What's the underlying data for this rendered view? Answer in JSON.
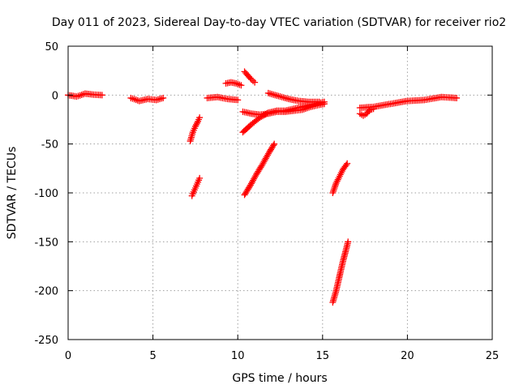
{
  "chart_data": {
    "type": "scatter",
    "title": "Day 011 of 2023, Sidereal Day-to-day VTEC variation (SDTVAR) for receiver rio2",
    "xlabel": "GPS time / hours",
    "ylabel": "SDTVAR / TECUs",
    "xlim": [
      0,
      25
    ],
    "ylim": [
      -250,
      50
    ],
    "xticks": [
      "0",
      "5",
      "10",
      "15",
      "20",
      "25"
    ],
    "yticks": [
      "50",
      "0",
      "-50",
      "-100",
      "-150",
      "-200",
      "-250"
    ],
    "grid": true,
    "marker": "plus",
    "colors": {
      "points": "#ff0000",
      "frame": "#000000",
      "grid": "#a0a0a0"
    },
    "series": [
      {
        "segments": [
          {
            "x": [
              0.0,
              0.5,
              1.0,
              1.5,
              2.0
            ],
            "y": [
              0.0,
              -1.5,
              1.5,
              0.5,
              0.0
            ]
          },
          {
            "x": [
              3.7,
              4.2,
              4.7,
              5.2,
              5.6
            ],
            "y": [
              -3.0,
              -6.0,
              -4.0,
              -5.0,
              -3.0
            ]
          },
          {
            "x": [
              7.2,
              7.35,
              7.5,
              7.65,
              7.75
            ],
            "y": [
              -47.0,
              -38.0,
              -32.0,
              -27.0,
              -23.0
            ]
          },
          {
            "x": [
              7.3,
              7.45,
              7.6,
              7.75
            ],
            "y": [
              -103.0,
              -97.0,
              -91.0,
              -85.0
            ]
          },
          {
            "x": [
              8.2,
              8.8,
              9.4,
              10.0
            ],
            "y": [
              -3.0,
              -2.0,
              -4.0,
              -5.0
            ]
          },
          {
            "x": [
              9.3,
              9.6,
              9.9,
              10.2
            ],
            "y": [
              12.0,
              13.0,
              12.0,
              10.0
            ]
          },
          {
            "x": [
              10.4,
              10.6,
              10.8,
              11.0
            ],
            "y": [
              24.0,
              20.0,
              16.0,
              13.0
            ]
          },
          {
            "x": [
              10.3,
              10.8,
              11.3,
              11.8,
              12.3,
              12.8,
              13.3,
              13.8,
              14.3,
              14.8,
              15.1
            ],
            "y": [
              -17.0,
              -19.0,
              -20.0,
              -19.0,
              -17.0,
              -17.0,
              -16.0,
              -15.0,
              -12.0,
              -10.0,
              -9.0
            ]
          },
          {
            "x": [
              10.3,
              10.8,
              11.3,
              11.8,
              12.3,
              12.8,
              13.3,
              13.8,
              14.3,
              14.8,
              15.1
            ],
            "y": [
              -38.0,
              -30.0,
              -23.0,
              -18.0,
              -16.0,
              -16.0,
              -14.0,
              -12.0,
              -10.0,
              -8.0,
              -7.0
            ]
          },
          {
            "x": [
              11.8,
              12.4,
              13.0,
              13.6,
              14.2,
              14.8
            ],
            "y": [
              2.0,
              -1.0,
              -4.0,
              -6.0,
              -7.0,
              -7.0
            ]
          },
          {
            "x": [
              10.4,
              10.75,
              11.1,
              11.45,
              11.8,
              12.15
            ],
            "y": [
              -102.0,
              -92.0,
              -81.0,
              -71.0,
              -60.0,
              -50.0
            ]
          },
          {
            "x": [
              15.6,
              15.8,
              16.0,
              16.2,
              16.45
            ],
            "y": [
              -100.0,
              -90.0,
              -83.0,
              -76.0,
              -70.0
            ]
          },
          {
            "x": [
              15.6,
              15.8,
              16.0,
              16.2,
              16.4,
              16.5
            ],
            "y": [
              -212.0,
              -200.0,
              -185.0,
              -170.0,
              -157.0,
              -150.0
            ]
          },
          {
            "x": [
              17.2,
              17.4,
              17.6,
              17.8,
              18.0
            ],
            "y": [
              -19.0,
              -21.0,
              -19.0,
              -15.0,
              -14.0
            ]
          },
          {
            "x": [
              17.2,
              18.0,
              19.0,
              20.0,
              21.0,
              22.0,
              22.9
            ],
            "y": [
              -13.0,
              -12.0,
              -9.0,
              -6.0,
              -5.0,
              -2.0,
              -3.0
            ]
          }
        ]
      }
    ]
  }
}
